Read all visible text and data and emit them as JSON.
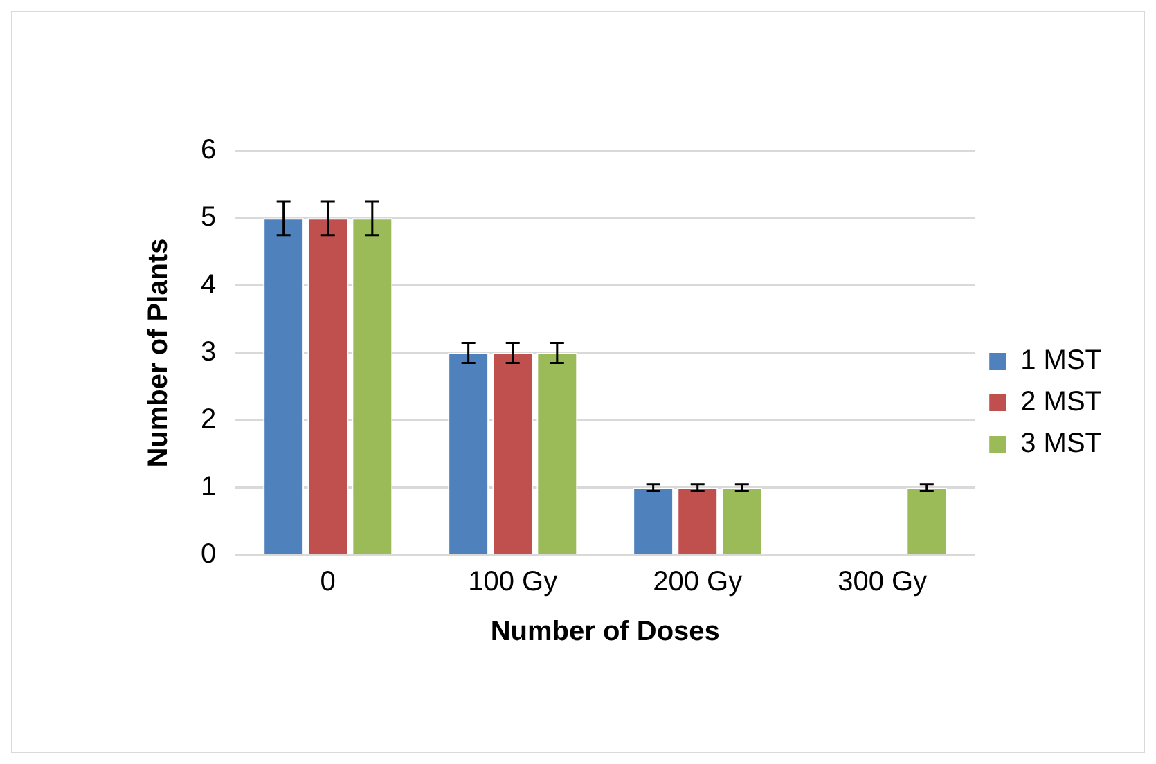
{
  "chart_data": {
    "type": "bar",
    "xlabel": "Number of Doses",
    "ylabel": "Number of Plants",
    "categories": [
      "0",
      "100 Gy",
      "200 Gy",
      "300 Gy"
    ],
    "series": [
      {
        "name": "1 MST",
        "color": "#4f81bd",
        "values": [
          5,
          3,
          1,
          0
        ],
        "errors": [
          0.25,
          0.15,
          0.05,
          null
        ]
      },
      {
        "name": "2 MST",
        "color": "#c0504d",
        "values": [
          5,
          3,
          1,
          0
        ],
        "errors": [
          0.25,
          0.15,
          0.05,
          null
        ]
      },
      {
        "name": "3 MST",
        "color": "#9bbb59",
        "values": [
          5,
          3,
          1,
          1
        ],
        "errors": [
          0.25,
          0.15,
          0.05,
          0.05
        ]
      }
    ],
    "ylim": [
      0,
      6
    ],
    "yticks": [
      0,
      1,
      2,
      3,
      4,
      5,
      6
    ],
    "grid": "y",
    "legend": "right"
  }
}
